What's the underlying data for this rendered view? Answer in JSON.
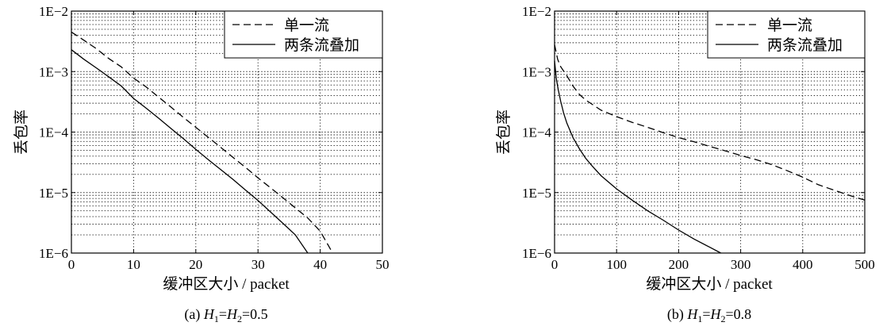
{
  "chart_data": [
    {
      "type": "line",
      "caption": {
        "prefix": "(a) ",
        "h1": "H",
        "s1": "1",
        "eq": "=",
        "h2": "H",
        "s2": "2",
        "value": "=0.5"
      },
      "xlabel": "缓冲区大小 / packet",
      "ylabel": "丢包率",
      "xlim": [
        0,
        50
      ],
      "ylim": [
        1e-06,
        0.01
      ],
      "yscale": "log",
      "grid": true,
      "legend": "top-right",
      "xticks": [
        0,
        10,
        20,
        30,
        40,
        50
      ],
      "xtick_labels": [
        "0",
        "10",
        "20",
        "30",
        "40",
        "50"
      ],
      "yticks": [
        1e-06,
        1e-05,
        0.0001,
        0.001,
        0.01
      ],
      "ytick_labels": [
        "1E−6",
        "1E−5",
        "1E−4",
        "1E−3",
        "1E−2"
      ],
      "series": [
        {
          "name": "单一流",
          "style": "dashed",
          "x": [
            0,
            2,
            4,
            6,
            8,
            10,
            12,
            14,
            16,
            18,
            20,
            22,
            24,
            26,
            28,
            30,
            32,
            34,
            36,
            38,
            40,
            42
          ],
          "y": [
            0.0045,
            0.0033,
            0.0024,
            0.00165,
            0.0012,
            0.00078,
            0.00056,
            0.00038,
            0.00026,
            0.000175,
            0.00012,
            8.2e-05,
            5.6e-05,
            3.8e-05,
            2.6e-05,
            1.75e-05,
            1.2e-05,
            8.2e-06,
            5.6e-06,
            3.8e-06,
            2.3e-06,
            1e-06
          ]
        },
        {
          "name": "两条流叠加",
          "style": "solid",
          "x": [
            0,
            2,
            4,
            6,
            8,
            10,
            12,
            14,
            16,
            18,
            20,
            22,
            24,
            26,
            28,
            30,
            32,
            34,
            36,
            38
          ],
          "y": [
            0.0023,
            0.0016,
            0.00115,
            0.00082,
            0.00058,
            0.00036,
            0.00025,
            0.00017,
            0.000115,
            7.8e-05,
            5.2e-05,
            3.5e-05,
            2.4e-05,
            1.65e-05,
            1.1e-05,
            7.4e-06,
            4.8e-06,
            3.1e-06,
            2e-06,
            1e-06
          ]
        }
      ]
    },
    {
      "type": "line",
      "caption": {
        "prefix": "(b) ",
        "h1": "H",
        "s1": "1",
        "eq": "=",
        "h2": "H",
        "s2": "2",
        "value": "=0.8"
      },
      "xlabel": "缓冲区大小 / packet",
      "ylabel": "丢包率",
      "xlim": [
        0,
        500
      ],
      "ylim": [
        1e-06,
        0.01
      ],
      "yscale": "log",
      "grid": true,
      "legend": "top-right",
      "xticks": [
        0,
        100,
        200,
        300,
        400,
        500
      ],
      "xtick_labels": [
        "0",
        "100",
        "200",
        "300",
        "400",
        "500"
      ],
      "yticks": [
        1e-06,
        1e-05,
        0.0001,
        0.001,
        0.01
      ],
      "ytick_labels": [
        "1E−6",
        "1E−5",
        "1E−4",
        "1E−3",
        "1E−2"
      ],
      "series": [
        {
          "name": "单一流",
          "style": "dashed",
          "x": [
            0,
            5,
            10,
            20,
            30,
            40,
            50,
            75,
            100,
            125,
            150,
            175,
            200,
            225,
            250,
            275,
            300,
            325,
            350,
            375,
            400,
            425,
            450,
            475,
            500
          ],
          "y": [
            0.0028,
            0.0016,
            0.0012,
            0.00085,
            0.00057,
            0.00042,
            0.00034,
            0.00023,
            0.00018,
            0.000145,
            0.00012,
            9.8e-05,
            8.1e-05,
            6.9e-05,
            5.8e-05,
            4.9e-05,
            4.1e-05,
            3.5e-05,
            2.9e-05,
            2.3e-05,
            1.8e-05,
            1.35e-05,
            1.1e-05,
            9e-06,
            7.5e-06
          ]
        },
        {
          "name": "两条流叠加",
          "style": "solid",
          "x": [
            0,
            3,
            6,
            10,
            15,
            20,
            30,
            40,
            50,
            60,
            75,
            100,
            125,
            150,
            175,
            200,
            225,
            250,
            268
          ],
          "y": [
            0.0015,
            0.00075,
            0.0005,
            0.00032,
            0.0002,
            0.00014,
            8e-05,
            5.3e-05,
            3.7e-05,
            2.8e-05,
            1.9e-05,
            1.15e-05,
            7.5e-06,
            5e-06,
            3.5e-06,
            2.4e-06,
            1.7e-06,
            1.25e-06,
            1e-06
          ]
        }
      ]
    }
  ]
}
